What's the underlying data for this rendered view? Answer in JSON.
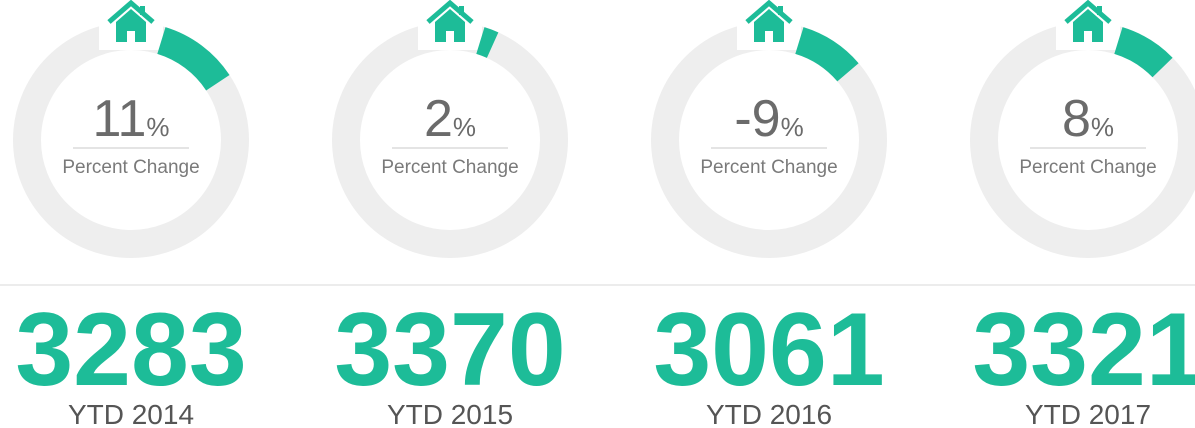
{
  "chart_data": [
    {
      "type": "gauge",
      "value": 11,
      "unit": "%",
      "caption": "Percent Change",
      "total": 3283,
      "label": "YTD 2014",
      "color": "#1dbc98"
    },
    {
      "type": "gauge",
      "value": 2,
      "unit": "%",
      "caption": "Percent Change",
      "total": 3370,
      "label": "YTD 2015",
      "color": "#1dbc98"
    },
    {
      "type": "gauge",
      "value": -9,
      "unit": "%",
      "caption": "Percent Change",
      "total": 3061,
      "label": "YTD 2016",
      "color": "#1dbc98"
    },
    {
      "type": "gauge",
      "value": 8,
      "unit": "%",
      "caption": "Percent Change",
      "total": 3321,
      "label": "YTD 2017",
      "color": "#1dbc98"
    }
  ]
}
